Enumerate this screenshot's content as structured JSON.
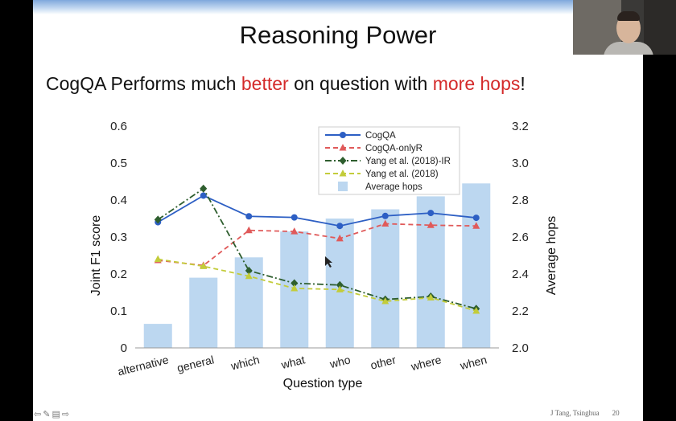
{
  "slide": {
    "title": "Reasoning Power",
    "headline": {
      "part1": "CogQA Performs much ",
      "part2": "better",
      "part3": " on question with ",
      "part4": "more hops",
      "part5": "!"
    },
    "footer_author": "J Tang, Tsinghua",
    "page_number": "20"
  },
  "chart_data": {
    "type": "bar+line",
    "categories": [
      "alternative",
      "general",
      "which",
      "what",
      "who",
      "other",
      "where",
      "when"
    ],
    "xlabel": "Question type",
    "ylabel_left": "Joint F1 score",
    "ylabel_right": "Average hops",
    "ylim_left": [
      0,
      0.6
    ],
    "ylim_right": [
      2.0,
      3.2
    ],
    "yticks_left": [
      "0",
      "0.1",
      "0.2",
      "0.3",
      "0.4",
      "0.5",
      "0.6"
    ],
    "yticks_right": [
      "2.0",
      "2.2",
      "2.4",
      "2.6",
      "2.8",
      "3.0",
      "3.2"
    ],
    "legend_position": "top-center",
    "bars": {
      "name": "Average hops",
      "axis": "right",
      "color": "#bcd7f0",
      "values": [
        2.13,
        2.38,
        2.49,
        2.63,
        2.7,
        2.75,
        2.82,
        2.89
      ]
    },
    "series": [
      {
        "name": "CogQA",
        "axis": "left",
        "color": "#2d5fc4",
        "dash": "solid",
        "marker": "circle",
        "values": [
          0.34,
          0.412,
          0.356,
          0.353,
          0.33,
          0.357,
          0.365,
          0.352
        ]
      },
      {
        "name": "CogQA-onlyR",
        "axis": "left",
        "color": "#e05a5a",
        "dash": "dashed",
        "marker": "triangle",
        "values": [
          0.237,
          0.223,
          0.318,
          0.315,
          0.296,
          0.336,
          0.332,
          0.33
        ]
      },
      {
        "name": "Yang et al. (2018)-IR",
        "axis": "left",
        "color": "#2e5e2e",
        "dash": "dashdot",
        "marker": "diamond",
        "values": [
          0.347,
          0.431,
          0.209,
          0.175,
          0.17,
          0.131,
          0.139,
          0.106
        ]
      },
      {
        "name": "Yang et al. (2018)",
        "axis": "left",
        "color": "#c3cc3a",
        "dash": "dashed",
        "marker": "triangle",
        "values": [
          0.24,
          0.221,
          0.194,
          0.161,
          0.158,
          0.126,
          0.136,
          0.1
        ]
      }
    ]
  }
}
